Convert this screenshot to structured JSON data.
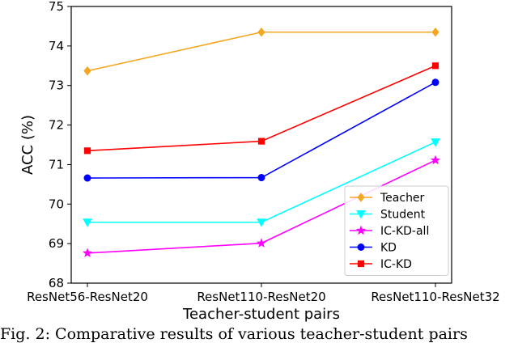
{
  "chart_data": {
    "type": "line",
    "categories": [
      "ResNet56-ResNet20",
      "ResNet110-ResNet20",
      "ResNet110-ResNet32"
    ],
    "xlabel": "Teacher-student pairs",
    "ylabel": "ACC (%)",
    "ylim": [
      68,
      75
    ],
    "yticks": [
      68,
      69,
      70,
      71,
      72,
      73,
      74,
      75
    ],
    "grid": false,
    "legend_position": "lower-right",
    "series": [
      {
        "name": "Teacher",
        "values": [
          73.37,
          74.35,
          74.35
        ],
        "color": "#f5a623",
        "marker": "diamond"
      },
      {
        "name": "Student",
        "values": [
          69.54,
          69.54,
          71.57
        ],
        "color": "#00ffff",
        "marker": "triangle-down"
      },
      {
        "name": "IC-KD-all",
        "values": [
          68.76,
          69.01,
          71.11
        ],
        "color": "#ff00ff",
        "marker": "star"
      },
      {
        "name": "KD",
        "values": [
          70.66,
          70.67,
          73.08
        ],
        "color": "#0000ff",
        "marker": "circle"
      },
      {
        "name": "IC-KD",
        "values": [
          71.35,
          71.59,
          73.5
        ],
        "color": "#ff0000",
        "marker": "square"
      }
    ]
  },
  "caption": "Fig. 2: Comparative results of various teacher-student pairs"
}
